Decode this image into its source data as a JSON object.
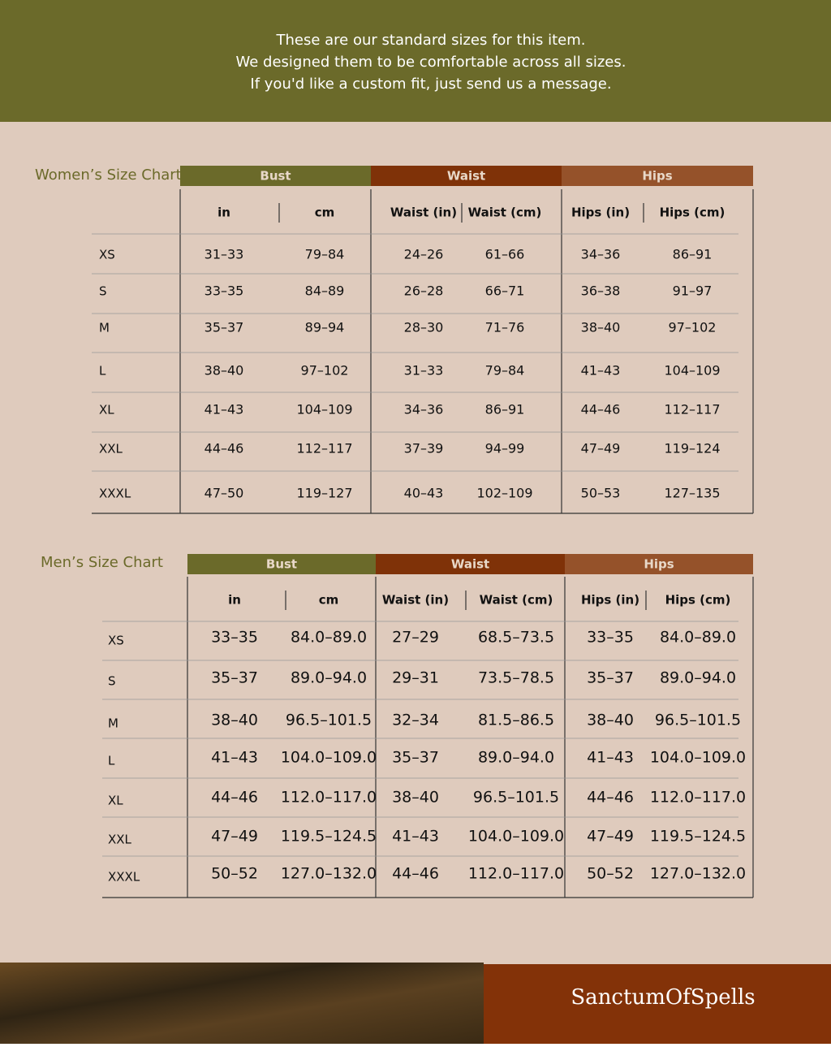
{
  "header": {
    "lines": [
      "These are our standard sizes for this item.",
      "We designed them to be comfortable across all sizes.",
      "If you'd like a custom fit, just send us a message."
    ]
  },
  "women": {
    "title": "Women’s Size Chart",
    "groups": [
      "Bust",
      "Waist",
      "Hips"
    ],
    "columns": [
      "in",
      "cm",
      "Waist (in)",
      "Waist (cm)",
      "Hips (in)",
      "Hips (cm)"
    ],
    "rows": [
      [
        "XS",
        "31–33",
        "79–84",
        "24–26",
        "61–66",
        "34–36",
        "86–91"
      ],
      [
        "S",
        "33–35",
        "84–89",
        "26–28",
        "66–71",
        "36–38",
        "91–97"
      ],
      [
        "M",
        "35–37",
        "89–94",
        "28–30",
        "71–76",
        "38–40",
        "97–102"
      ],
      [
        "L",
        "38–40",
        "97–102",
        "31–33",
        "79–84",
        "41–43",
        "104–109"
      ],
      [
        "XL",
        "41–43",
        "104–109",
        "34–36",
        "86–91",
        "44–46",
        "112–117"
      ],
      [
        "XXL",
        "44–46",
        "112–117",
        "37–39",
        "94–99",
        "47–49",
        "119–124"
      ],
      [
        "XXXL",
        "47–50",
        "119–127",
        "40–43",
        "102–109",
        "50–53",
        "127–135"
      ]
    ]
  },
  "men": {
    "title": "Men’s Size Chart",
    "groups": [
      "Bust",
      "Waist",
      "Hips"
    ],
    "columns": [
      "in",
      "cm",
      "Waist (in)",
      "Waist (cm)",
      "Hips (in)",
      "Hips (cm)"
    ],
    "rows": [
      [
        "XS",
        "33–35",
        "84.0–89.0",
        "27–29",
        "68.5–73.5",
        "33–35",
        "84.0–89.0"
      ],
      [
        "S",
        "35–37",
        "89.0–94.0",
        "29–31",
        "73.5–78.5",
        "35–37",
        "89.0–94.0"
      ],
      [
        "M",
        "38–40",
        "96.5–101.5",
        "32–34",
        "81.5–86.5",
        "38–40",
        "96.5–101.5"
      ],
      [
        "L",
        "41–43",
        "104.0–109.0",
        "35–37",
        "89.0–94.0",
        "41–43",
        "104.0–109.0"
      ],
      [
        "XL",
        "44–46",
        "112.0–117.0",
        "38–40",
        "96.5–101.5",
        "44–46",
        "112.0–117.0"
      ],
      [
        "XXL",
        "47–49",
        "119.5–124.5",
        "41–43",
        "104.0–109.0",
        "47–49",
        "119.5–124.5"
      ],
      [
        "XXXL",
        "50–52",
        "127.0–132.0",
        "44–46",
        "112.0–117.0",
        "50–52",
        "127.0–132.0"
      ]
    ]
  },
  "footer": {
    "brand": "SanctumOfSpells"
  }
}
